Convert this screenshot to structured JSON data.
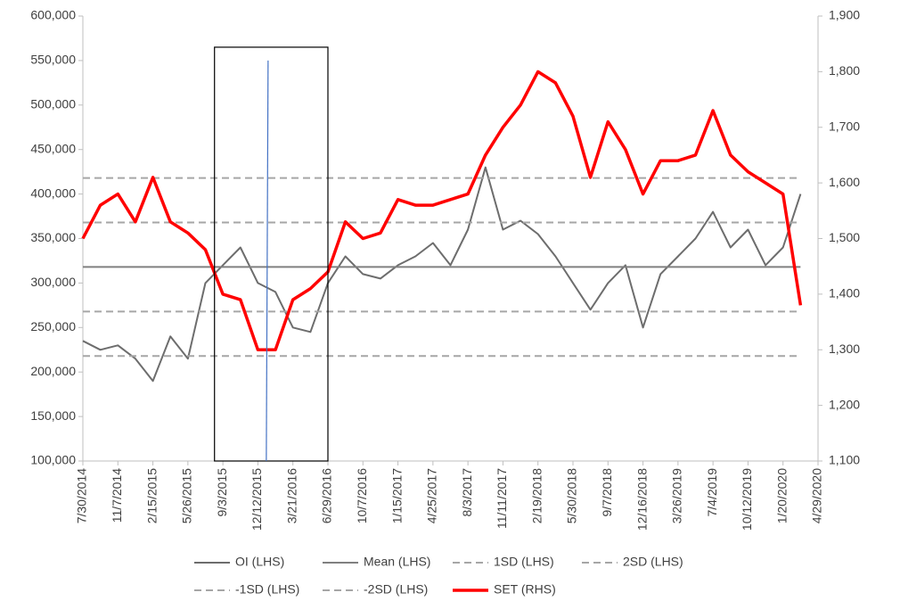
{
  "chart_data": {
    "type": "line",
    "x": [
      "7/30/2014",
      "9/18/2014",
      "11/7/2014",
      "12/27/2014",
      "2/15/2015",
      "4/6/2015",
      "5/26/2015",
      "7/15/2015",
      "9/3/2015",
      "10/23/2015",
      "12/12/2015",
      "1/31/2016",
      "3/21/2016",
      "5/10/2016",
      "6/29/2016",
      "8/18/2016",
      "10/7/2016",
      "11/26/2016",
      "1/15/2017",
      "3/6/2017",
      "4/25/2017",
      "6/14/2017",
      "8/3/2017",
      "9/22/2017",
      "11/11/2017",
      "12/31/2017",
      "2/19/2018",
      "4/10/2018",
      "5/30/2018",
      "7/19/2018",
      "9/7/2018",
      "10/27/2018",
      "12/16/2018",
      "2/4/2019",
      "3/26/2019",
      "5/15/2019",
      "7/4/2019",
      "8/23/2019",
      "10/12/2019",
      "12/1/2019",
      "1/20/2020",
      "3/10/2020"
    ],
    "series": [
      {
        "name": "OI (LHS)",
        "color": "#6d6d6d",
        "values": [
          235000,
          225000,
          230000,
          215000,
          190000,
          240000,
          215000,
          300000,
          320000,
          340000,
          300000,
          290000,
          250000,
          245000,
          300000,
          330000,
          310000,
          305000,
          320000,
          330000,
          345000,
          320000,
          360000,
          430000,
          360000,
          370000,
          355000,
          330000,
          300000,
          270000,
          300000,
          320000,
          250000,
          310000,
          330000,
          350000,
          380000,
          340000,
          360000,
          320000,
          340000,
          400000
        ]
      },
      {
        "name": "Mean (LHS)",
        "color": "#808080",
        "level": 318000
      },
      {
        "name": "1SD (LHS)",
        "color": "#a6a6a6",
        "dash": true,
        "level": 368000
      },
      {
        "name": "2SD (LHS)",
        "color": "#a6a6a6",
        "dash": true,
        "level": 418000
      },
      {
        "name": "-1SD (LHS)",
        "color": "#a6a6a6",
        "dash": true,
        "level": 268000
      },
      {
        "name": "-2SD (LHS)",
        "color": "#a6a6a6",
        "dash": true,
        "level": 218000
      },
      {
        "name": "SET (RHS)",
        "color": "#ff0000",
        "axis": "y2",
        "values": [
          1500,
          1560,
          1580,
          1530,
          1610,
          1530,
          1510,
          1480,
          1400,
          1390,
          1300,
          1300,
          1390,
          1410,
          1440,
          1530,
          1500,
          1510,
          1570,
          1560,
          1560,
          1570,
          1580,
          1650,
          1700,
          1740,
          1800,
          1780,
          1720,
          1610,
          1710,
          1660,
          1580,
          1640,
          1640,
          1650,
          1730,
          1650,
          1620,
          1600,
          1580,
          1380
        ]
      }
    ],
    "xlim": [
      "7/30/2014",
      "4/29/2020"
    ],
    "xticks": [
      "7/30/2014",
      "11/7/2014",
      "2/15/2015",
      "5/26/2015",
      "9/3/2015",
      "12/12/2015",
      "3/21/2016",
      "6/29/2016",
      "10/7/2016",
      "1/15/2017",
      "4/25/2017",
      "8/3/2017",
      "11/11/2017",
      "2/19/2018",
      "5/30/2018",
      "9/7/2018",
      "12/16/2018",
      "3/26/2019",
      "7/4/2019",
      "10/12/2019",
      "1/20/2020",
      "4/29/2020"
    ],
    "ylim": [
      100000,
      600000
    ],
    "yticks": [
      {
        "value": 100000,
        "label": "100,000"
      },
      {
        "value": 150000,
        "label": "150,000"
      },
      {
        "value": 200000,
        "label": "200,000"
      },
      {
        "value": 250000,
        "label": "250,000"
      },
      {
        "value": 300000,
        "label": "300,000"
      },
      {
        "value": 350000,
        "label": "350,000"
      },
      {
        "value": 400000,
        "label": "400,000"
      },
      {
        "value": 450000,
        "label": "450,000"
      },
      {
        "value": 500000,
        "label": "500,000"
      },
      {
        "value": 550000,
        "label": "550,000"
      },
      {
        "value": 600000,
        "label": "600,000"
      }
    ],
    "y2lim": [
      1100,
      1900
    ],
    "y2ticks": [
      {
        "value": 1100,
        "label": "1,100"
      },
      {
        "value": 1200,
        "label": "1,200"
      },
      {
        "value": 1300,
        "label": "1,300"
      },
      {
        "value": 1400,
        "label": "1,400"
      },
      {
        "value": 1500,
        "label": "1,500"
      },
      {
        "value": 1600,
        "label": "1,600"
      },
      {
        "value": 1700,
        "label": "1,700"
      },
      {
        "value": 1800,
        "label": "1,800"
      },
      {
        "value": 1900,
        "label": "1,900"
      }
    ],
    "highlight_box": {
      "x": [
        "8/10/2015",
        "6/29/2016"
      ],
      "y": [
        100000,
        565000
      ]
    },
    "marker_line": {
      "x": "1/5/2016",
      "y": [
        100000,
        550000
      ],
      "color": "#4472c4"
    }
  }
}
